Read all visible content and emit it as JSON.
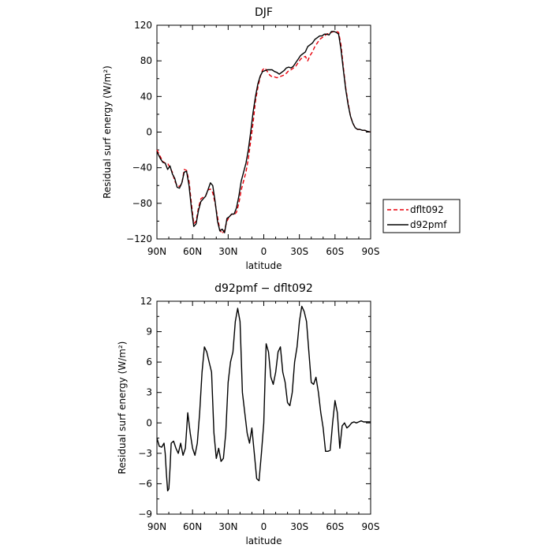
{
  "chart_data": [
    {
      "type": "line",
      "title": "DJF",
      "xlabel": "latitude",
      "ylabel": "Residual surf energy (W/m²)",
      "xlim": [
        90,
        -90
      ],
      "ylim": [
        -120,
        120
      ],
      "x_ticks": [
        {
          "value": 90,
          "label": "90N"
        },
        {
          "value": 60,
          "label": "60N"
        },
        {
          "value": 30,
          "label": "30N"
        },
        {
          "value": 0,
          "label": "0"
        },
        {
          "value": -30,
          "label": "30S"
        },
        {
          "value": -60,
          "label": "60S"
        },
        {
          "value": -90,
          "label": "90S"
        }
      ],
      "y_ticks": [
        {
          "value": 120,
          "label": "120"
        },
        {
          "value": 80,
          "label": "80"
        },
        {
          "value": 40,
          "label": "40"
        },
        {
          "value": 0,
          "label": "0"
        },
        {
          "value": -40,
          "label": "−40"
        },
        {
          "value": -80,
          "label": "−80"
        },
        {
          "value": -120,
          "label": "−120"
        }
      ],
      "legend_position": "outside-right",
      "grid": false,
      "series": [
        {
          "name": "dflt092",
          "color": "#e8000b",
          "dash": "dashed",
          "x": [
            90,
            87,
            85,
            83,
            81,
            79,
            77,
            75,
            73,
            71,
            69,
            67,
            65,
            63,
            61,
            59,
            57,
            55,
            53,
            51,
            49,
            47,
            45,
            43,
            41,
            39,
            37,
            35,
            33,
            31,
            29,
            27,
            25,
            23,
            21,
            19,
            17,
            15,
            13,
            11,
            9,
            7,
            5,
            3,
            1,
            -1,
            -3,
            -5,
            -7,
            -9,
            -11,
            -13,
            -15,
            -17,
            -19,
            -21,
            -23,
            -25,
            -27,
            -29,
            -31,
            -33,
            -35,
            -37,
            -39,
            -41,
            -43,
            -45,
            -47,
            -49,
            -51,
            -53,
            -55,
            -57,
            -59,
            -61,
            -63,
            -65,
            -67,
            -69,
            -71,
            -73,
            -75,
            -77,
            -79,
            -81,
            -83,
            -85,
            -87,
            -90
          ],
          "values": [
            -20,
            -28,
            -33,
            -35,
            -35,
            -40,
            -45,
            -55,
            -60,
            -61,
            -58,
            -42,
            -43,
            -55,
            -80,
            -103,
            -100,
            -85,
            -75,
            -73,
            -72,
            -65,
            -64,
            -68,
            -80,
            -95,
            -110,
            -114,
            -110,
            -100,
            -95,
            -92,
            -93,
            -90,
            -80,
            -65,
            -55,
            -45,
            -30,
            -10,
            10,
            35,
            50,
            62,
            70,
            72,
            68,
            64,
            62,
            62,
            61,
            62,
            63,
            64,
            66,
            69,
            70,
            72,
            74,
            78,
            82,
            84,
            85,
            80,
            86,
            90,
            96,
            100,
            104,
            106,
            108,
            110,
            111,
            112,
            113,
            113,
            112,
            98,
            73,
            50,
            33,
            18,
            10,
            5,
            3,
            3,
            2,
            2,
            1,
            0
          ]
        },
        {
          "name": "d92pmf",
          "color": "#000000",
          "dash": "solid",
          "x": [
            90,
            87,
            85,
            83,
            81,
            79,
            77,
            75,
            73,
            71,
            69,
            67,
            65,
            63,
            61,
            59,
            57,
            55,
            53,
            51,
            49,
            47,
            45,
            43,
            41,
            39,
            37,
            35,
            33,
            31,
            29,
            27,
            25,
            23,
            21,
            19,
            17,
            15,
            13,
            11,
            9,
            7,
            5,
            3,
            1,
            -1,
            -3,
            -5,
            -7,
            -9,
            -11,
            -13,
            -15,
            -17,
            -19,
            -21,
            -23,
            -25,
            -27,
            -29,
            -31,
            -33,
            -35,
            -37,
            -39,
            -41,
            -43,
            -45,
            -47,
            -49,
            -51,
            -53,
            -55,
            -57,
            -59,
            -61,
            -63,
            -65,
            -67,
            -69,
            -71,
            -73,
            -75,
            -77,
            -79,
            -81,
            -83,
            -85,
            -87,
            -90
          ],
          "values": [
            -22,
            -30,
            -34,
            -35,
            -42,
            -38,
            -47,
            -52,
            -62,
            -63,
            -57,
            -45,
            -44,
            -60,
            -85,
            -106,
            -103,
            -88,
            -78,
            -75,
            -72,
            -65,
            -57,
            -60,
            -78,
            -100,
            -111,
            -109,
            -113,
            -97,
            -95,
            -92,
            -92,
            -85,
            -72,
            -55,
            -45,
            -35,
            -20,
            0,
            22,
            40,
            54,
            63,
            68,
            69,
            70,
            70,
            70,
            68,
            67,
            65,
            67,
            69,
            72,
            73,
            72,
            74,
            78,
            82,
            86,
            88,
            90,
            96,
            98,
            100,
            104,
            106,
            108,
            108,
            110,
            110,
            109,
            113,
            113,
            112,
            110,
            93,
            70,
            48,
            31,
            18,
            10,
            5,
            3,
            3,
            2,
            2,
            1,
            0
          ]
        }
      ]
    },
    {
      "type": "line",
      "title": "d92pmf − dflt092",
      "xlabel": "latitude",
      "ylabel": "Residual surf energy (W/m²)",
      "xlim": [
        90,
        -90
      ],
      "ylim": [
        -9,
        12
      ],
      "x_ticks": [
        {
          "value": 90,
          "label": "90N"
        },
        {
          "value": 60,
          "label": "60N"
        },
        {
          "value": 30,
          "label": "30N"
        },
        {
          "value": 0,
          "label": "0"
        },
        {
          "value": -30,
          "label": "30S"
        },
        {
          "value": -60,
          "label": "60S"
        },
        {
          "value": -90,
          "label": "90S"
        }
      ],
      "y_ticks": [
        {
          "value": 12,
          "label": "12"
        },
        {
          "value": 9,
          "label": "9"
        },
        {
          "value": 6,
          "label": "6"
        },
        {
          "value": 3,
          "label": "3"
        },
        {
          "value": 0,
          "label": "0"
        },
        {
          "value": -3,
          "label": "−3"
        },
        {
          "value": -6,
          "label": "−6"
        },
        {
          "value": -9,
          "label": "−9"
        }
      ],
      "grid": false,
      "series": [
        {
          "color": "#000000",
          "dash": "solid",
          "x": [
            90,
            88,
            86,
            84,
            83,
            82,
            81,
            80,
            79,
            78,
            76,
            74,
            72,
            70,
            68,
            66,
            64,
            62,
            60,
            58,
            56,
            54,
            52,
            50,
            48,
            46,
            44,
            42,
            40,
            38,
            36,
            34,
            32,
            30,
            28,
            26,
            24,
            22,
            20,
            18,
            16,
            14,
            12,
            10,
            8,
            6,
            4,
            2,
            0,
            -1,
            -2,
            -4,
            -6,
            -8,
            -10,
            -12,
            -14,
            -16,
            -18,
            -20,
            -22,
            -24,
            -26,
            -28,
            -30,
            -32,
            -34,
            -36,
            -38,
            -40,
            -42,
            -44,
            -46,
            -48,
            -50,
            -52,
            -54,
            -56,
            -58,
            -60,
            -62,
            -64,
            -66,
            -68,
            -70,
            -72,
            -74,
            -76,
            -78,
            -80,
            -82,
            -84,
            -86,
            -88,
            -90
          ],
          "values": [
            -1.5,
            -2.3,
            -2.4,
            -2,
            -3,
            -5,
            -6.7,
            -6.5,
            -4.5,
            -2,
            -1.8,
            -2.5,
            -3,
            -2,
            -3.2,
            -2.5,
            1,
            -1,
            -2.5,
            -3.2,
            -2,
            1,
            5,
            7.5,
            7,
            6,
            5,
            -1,
            -3.5,
            -2.5,
            -3.8,
            -3.5,
            -1,
            4,
            6,
            7,
            10,
            11.3,
            10,
            3,
            1,
            -1,
            -2,
            -0.5,
            -3,
            -5.5,
            -5.7,
            -3,
            0,
            4,
            7.8,
            7,
            4.5,
            3.8,
            5,
            7,
            7.5,
            5,
            4,
            2,
            1.7,
            3,
            6,
            7.5,
            10,
            11.5,
            11,
            10,
            7,
            4,
            3.8,
            4.5,
            3,
            1,
            -0.5,
            -2.8,
            -2.8,
            -2.7,
            0,
            2.2,
            1,
            -2.5,
            -0.3,
            0,
            -0.5,
            -0.3,
            0,
            0.1,
            0,
            0.1,
            0.2,
            0.1,
            0.1,
            0.1,
            0.1
          ]
        }
      ]
    }
  ]
}
